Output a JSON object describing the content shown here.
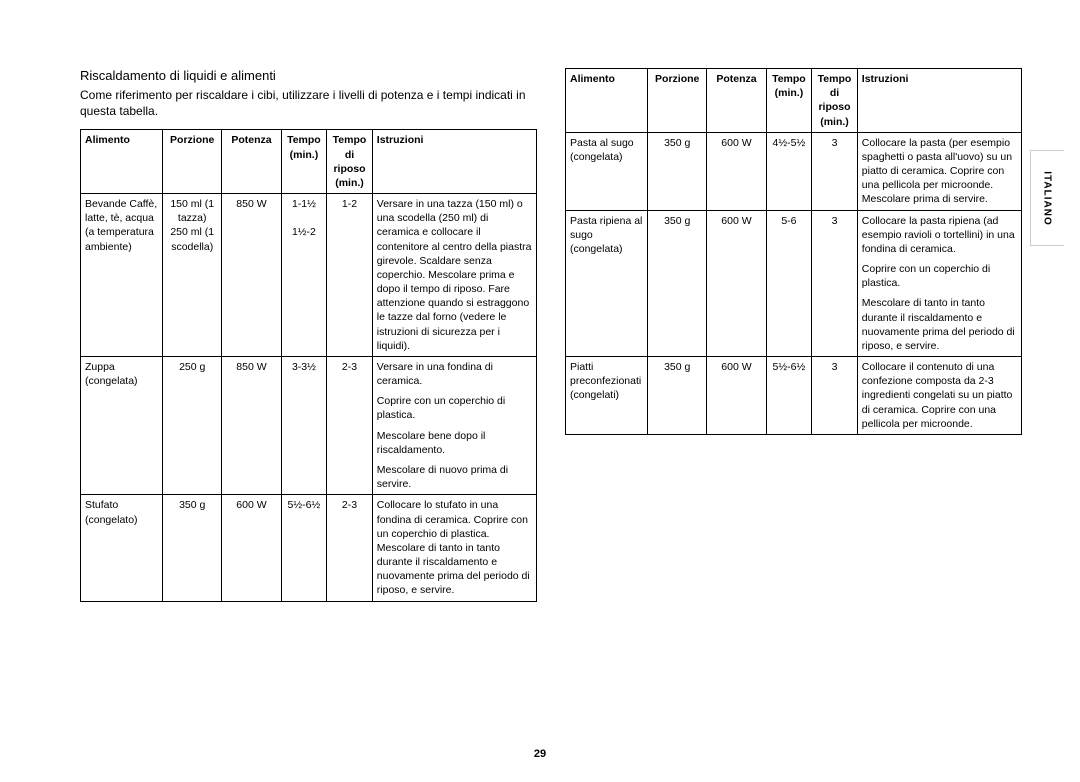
{
  "page_number": "29",
  "side_tab": "ITALIANO",
  "heading": "Riscaldamento di liquidi e alimenti",
  "intro": "Come riferimento per riscaldare i cibi, utilizzare i livelli di potenza e i tempi indicati in questa tabella.",
  "columns": {
    "alimento": "Alimento",
    "porzione": "Porzione",
    "potenza": "Potenza",
    "tempo": "Tempo (min.)",
    "riposo": "Tempo di riposo (min.)",
    "istruzioni": "Istruzioni"
  },
  "left_rows": [
    {
      "alimento": "Bevande Caffè, latte, tè, acqua (a temperatura ambiente)",
      "porzione": "150 ml (1 tazza)\n250 ml (1 scodella)",
      "potenza": "850 W",
      "tempo": "1-1½\n\n1½-2",
      "riposo": "1-2",
      "istruzioni": [
        "Versare in una tazza (150 ml) o una scodella (250 ml) di ceramica e collocare il contenitore al centro della piastra girevole. Scaldare senza coperchio. Mescolare prima e dopo il tempo di riposo. Fare attenzione quando si estraggono le tazze dal forno (vedere le istruzioni di sicurezza per i liquidi)."
      ]
    },
    {
      "alimento": "Zuppa (congelata)",
      "porzione": "250 g",
      "potenza": "850 W",
      "tempo": "3-3½",
      "riposo": "2-3",
      "istruzioni": [
        "Versare in una fondina di ceramica.",
        "Coprire con un coperchio di plastica.",
        "Mescolare bene dopo il riscaldamento.",
        "Mescolare di nuovo prima di servire."
      ]
    },
    {
      "alimento": "Stufato (congelato)",
      "porzione": "350 g",
      "potenza": "600 W",
      "tempo": "5½-6½",
      "riposo": "2-3",
      "istruzioni": [
        "Collocare lo stufato in una fondina di ceramica. Coprire con un coperchio di plastica. Mescolare di tanto in tanto durante il riscaldamento e nuovamente prima del periodo di riposo, e servire."
      ]
    }
  ],
  "right_rows": [
    {
      "alimento": "Pasta al sugo (congelata)",
      "porzione": "350 g",
      "potenza": "600 W",
      "tempo": "4½-5½",
      "riposo": "3",
      "istruzioni": [
        "Collocare la pasta (per esempio spaghetti o pasta all'uovo) su un piatto di ceramica. Coprire con una pellicola per microonde. Mescolare prima di servire."
      ]
    },
    {
      "alimento": "Pasta ripiena al sugo (congelata)",
      "porzione": "350 g",
      "potenza": "600 W",
      "tempo": "5-6",
      "riposo": "3",
      "istruzioni": [
        "Collocare la pasta ripiena (ad esempio ravioli o tortellini) in una fondina di ceramica.",
        "Coprire con un coperchio di plastica.",
        "Mescolare di tanto in tanto durante il riscaldamento e nuovamente prima del periodo di riposo, e servire."
      ]
    },
    {
      "alimento": "Piatti preconfezionati (congelati)",
      "porzione": "350 g",
      "potenza": "600 W",
      "tempo": "5½-6½",
      "riposo": "3",
      "istruzioni": [
        "Collocare il contenuto di una confezione composta da 2-3 ingredienti congelati su un piatto di ceramica. Coprire con una pellicola per microonde."
      ]
    }
  ]
}
